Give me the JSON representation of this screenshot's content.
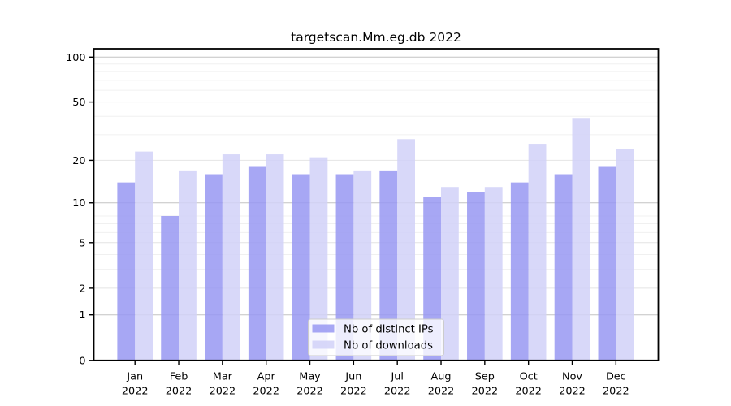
{
  "chart_data": {
    "type": "bar",
    "title": "targetscan.Mm.eg.db 2022",
    "scale": "log1p",
    "grid": true,
    "legend_position": "bottom-center",
    "categories": [
      "Jan",
      "Feb",
      "Mar",
      "Apr",
      "May",
      "Jun",
      "Jul",
      "Aug",
      "Sep",
      "Oct",
      "Nov",
      "Dec"
    ],
    "year_label": "2022",
    "series": [
      {
        "name": "Nb of distinct IPs",
        "key": "ips",
        "color": "#9898f2",
        "values": [
          14,
          8,
          16,
          18,
          16,
          16,
          17,
          11,
          12,
          14,
          16,
          18
        ]
      },
      {
        "name": "Nb of downloads",
        "key": "downloads",
        "color": "#d1d1f8",
        "values": [
          23,
          17,
          22,
          22,
          21,
          17,
          28,
          13,
          13,
          26,
          39,
          24
        ]
      }
    ],
    "y_ticks": [
      0,
      1,
      2,
      5,
      10,
      20,
      50,
      100
    ],
    "y_minor_gridlines": [
      3,
      4,
      6,
      7,
      8,
      9,
      30,
      40,
      60,
      70,
      80,
      90
    ],
    "y_emphasized_gridlines": [
      1,
      10,
      100
    ],
    "ylim": [
      0,
      116
    ],
    "xlabel": "",
    "ylabel": ""
  },
  "colors": {
    "axis": "#000000",
    "grid_minor": "#f0f0f0",
    "grid_major": "#e4e4e4",
    "grid_emphasized": "#c3c3c3",
    "legend_border": "#cccccc",
    "legend_background": "rgba(255,255,255,0.8)"
  }
}
